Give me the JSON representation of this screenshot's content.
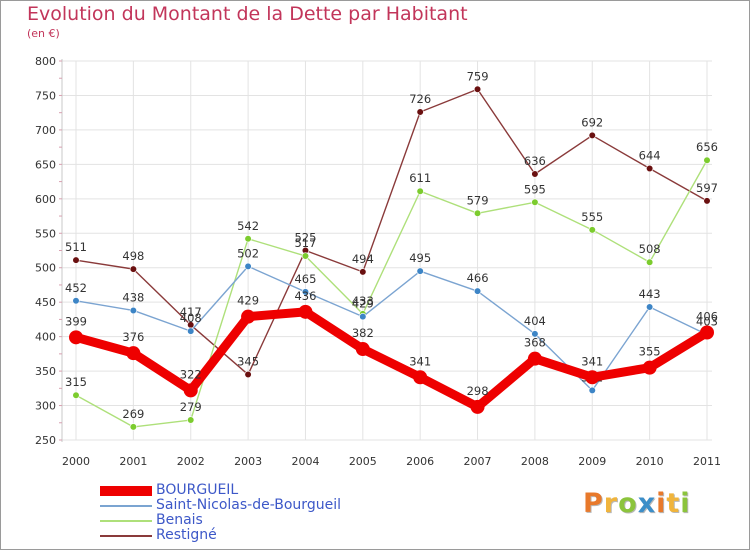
{
  "title": "Evolution du Montant de la Dette par Habitant",
  "subtitle": "(en €)",
  "logo_text": "Proxiti",
  "logo_colors": [
    "#e8792b",
    "#f0b43c",
    "#8cc43c",
    "#3c8ec8",
    "#e8792b",
    "#f0b43c",
    "#8cc43c"
  ],
  "chart_data": {
    "type": "line",
    "x": [
      "2000",
      "2001",
      "2002",
      "2003",
      "2004",
      "2005",
      "2006",
      "2007",
      "2008",
      "2009",
      "2010",
      "2011"
    ],
    "ylim": [
      250,
      800
    ],
    "yticks": [
      250,
      300,
      350,
      400,
      450,
      500,
      550,
      600,
      650,
      700,
      750,
      800
    ],
    "grid": true,
    "legend_position": "bottom-left",
    "series": [
      {
        "name": "BOURGUEIL",
        "color": "#ee0000",
        "dot_color": "#ee0000",
        "width": "thick",
        "values": [
          399,
          376,
          322,
          429,
          436,
          382,
          341,
          298,
          368,
          341,
          355,
          406
        ]
      },
      {
        "name": "Saint-Nicolas-de-Bourgueil",
        "color": "#7ba4d1",
        "dot_color": "#3d85c6",
        "width": "thin",
        "values": [
          452,
          438,
          408,
          502,
          465,
          429,
          495,
          466,
          404,
          322,
          443,
          403
        ]
      },
      {
        "name": "Benais",
        "color": "#aee07a",
        "dot_color": "#7ccc2e",
        "width": "thin",
        "values": [
          315,
          269,
          279,
          542,
          517,
          433,
          611,
          579,
          595,
          555,
          508,
          656
        ]
      },
      {
        "name": "Restigné",
        "color": "#8a3a3a",
        "dot_color": "#6a1010",
        "width": "thin",
        "values": [
          511,
          498,
          417,
          345,
          525,
          494,
          726,
          759,
          636,
          692,
          644,
          597
        ]
      }
    ]
  }
}
